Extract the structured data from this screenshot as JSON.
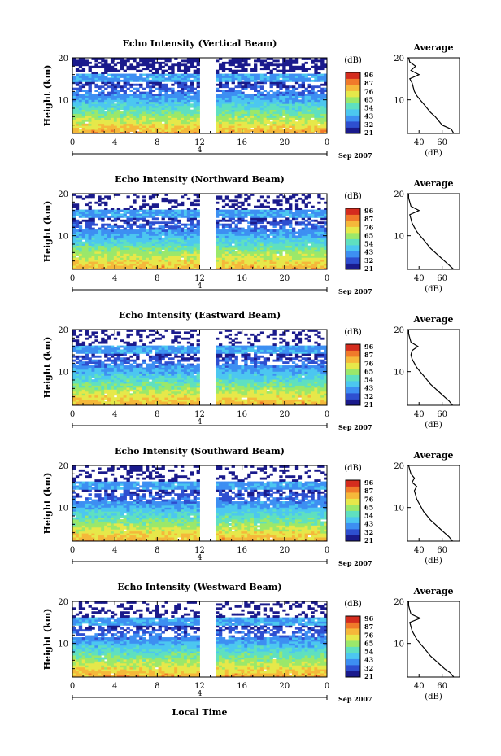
{
  "figure": {
    "xlabel": "Local Time",
    "date_label": "Sep 2007",
    "day_label": "4"
  },
  "colorbar": {
    "unit": "(dB)",
    "ticks": [
      "96",
      "87",
      "76",
      "65",
      "54",
      "43",
      "32",
      "21"
    ],
    "colors": [
      "#1a1a8c",
      "#2e4fd0",
      "#3d8ff2",
      "#4cc7f0",
      "#5fe0c0",
      "#9be86a",
      "#e6e84a",
      "#f5b83a",
      "#f07a2a",
      "#d42c1e"
    ]
  },
  "chart_data": [
    {
      "type": "heatmap",
      "title": "Echo Intensity (Vertical Beam)",
      "ylabel": "Height (km)",
      "x_ticks": [
        "0",
        "4",
        "8",
        "12",
        "16",
        "20",
        "0"
      ],
      "y_ticks": [
        "20",
        "10"
      ],
      "xlim": [
        0,
        24
      ],
      "ylim": [
        2,
        20
      ],
      "data_gap": [
        12,
        13.6
      ],
      "value_range": [
        21,
        96
      ]
    },
    {
      "type": "line",
      "title": "Average",
      "xlabel": "(dB)",
      "x_ticks": [
        "40",
        "60"
      ],
      "y_ticks": [
        "20",
        "10"
      ],
      "xlim": [
        30,
        75
      ],
      "ylim": [
        2,
        20
      ],
      "profile": [
        [
          70,
          2
        ],
        [
          68,
          3
        ],
        [
          60,
          4
        ],
        [
          57,
          5
        ],
        [
          54,
          6
        ],
        [
          50,
          7
        ],
        [
          47,
          8
        ],
        [
          44,
          9
        ],
        [
          41,
          10
        ],
        [
          38,
          11
        ],
        [
          36,
          12
        ],
        [
          35,
          13
        ],
        [
          34,
          14
        ],
        [
          32,
          15
        ],
        [
          40,
          16
        ],
        [
          33,
          17
        ],
        [
          37,
          18
        ],
        [
          32,
          19
        ],
        [
          31,
          20
        ]
      ]
    },
    {
      "type": "heatmap",
      "title": "Echo Intensity (Northward Beam)",
      "ylabel": "Height (km)",
      "x_ticks": [
        "0",
        "4",
        "8",
        "12",
        "16",
        "20",
        "0"
      ],
      "y_ticks": [
        "20",
        "10"
      ],
      "xlim": [
        0,
        24
      ],
      "ylim": [
        2,
        20
      ],
      "data_gap": [
        12,
        13.6
      ],
      "value_range": [
        21,
        96
      ]
    },
    {
      "type": "line",
      "title": "Average",
      "xlabel": "(dB)",
      "x_ticks": [
        "40",
        "60"
      ],
      "y_ticks": [
        "20",
        "10"
      ],
      "xlim": [
        30,
        75
      ],
      "ylim": [
        2,
        20
      ],
      "profile": [
        [
          70,
          2
        ],
        [
          66,
          3
        ],
        [
          62,
          4
        ],
        [
          58,
          5
        ],
        [
          54,
          6
        ],
        [
          50,
          7
        ],
        [
          47,
          8
        ],
        [
          44,
          9
        ],
        [
          41,
          10
        ],
        [
          38,
          11
        ],
        [
          36,
          12
        ],
        [
          34,
          13
        ],
        [
          33,
          14
        ],
        [
          32,
          15
        ],
        [
          40,
          16
        ],
        [
          33,
          17
        ],
        [
          32,
          18
        ],
        [
          31,
          19
        ],
        [
          31,
          20
        ]
      ]
    },
    {
      "type": "heatmap",
      "title": "Echo Intensity (Eastward Beam)",
      "ylabel": "Height (km)",
      "x_ticks": [
        "0",
        "4",
        "8",
        "12",
        "16",
        "20",
        "0"
      ],
      "y_ticks": [
        "20",
        "10"
      ],
      "xlim": [
        0,
        24
      ],
      "ylim": [
        2,
        20
      ],
      "data_gap": [
        12,
        13.6
      ],
      "value_range": [
        21,
        96
      ]
    },
    {
      "type": "line",
      "title": "Average",
      "xlabel": "(dB)",
      "x_ticks": [
        "40",
        "60"
      ],
      "y_ticks": [
        "20",
        "10"
      ],
      "xlim": [
        30,
        75
      ],
      "ylim": [
        2,
        20
      ],
      "profile": [
        [
          69,
          2
        ],
        [
          66,
          3
        ],
        [
          62,
          4
        ],
        [
          58,
          5
        ],
        [
          54,
          6
        ],
        [
          50,
          7
        ],
        [
          47,
          8
        ],
        [
          44,
          9
        ],
        [
          41,
          10
        ],
        [
          38,
          11
        ],
        [
          36,
          12
        ],
        [
          34,
          13
        ],
        [
          33,
          14
        ],
        [
          34,
          15
        ],
        [
          39,
          16
        ],
        [
          33,
          17
        ],
        [
          32,
          18
        ],
        [
          31,
          19
        ],
        [
          31,
          20
        ]
      ]
    },
    {
      "type": "heatmap",
      "title": "Echo Intensity (Southward Beam)",
      "ylabel": "Height (km)",
      "x_ticks": [
        "0",
        "4",
        "8",
        "12",
        "16",
        "20",
        "0"
      ],
      "y_ticks": [
        "20",
        "10"
      ],
      "xlim": [
        0,
        24
      ],
      "ylim": [
        2,
        20
      ],
      "data_gap": [
        12,
        13.6
      ],
      "value_range": [
        21,
        96
      ]
    },
    {
      "type": "line",
      "title": "Average",
      "xlabel": "(dB)",
      "x_ticks": [
        "40",
        "60"
      ],
      "y_ticks": [
        "20",
        "10"
      ],
      "xlim": [
        30,
        75
      ],
      "ylim": [
        2,
        20
      ],
      "profile": [
        [
          69,
          2
        ],
        [
          66,
          3
        ],
        [
          62,
          4
        ],
        [
          58,
          5
        ],
        [
          54,
          6
        ],
        [
          50,
          7
        ],
        [
          47,
          8
        ],
        [
          44,
          9
        ],
        [
          42,
          10
        ],
        [
          40,
          11
        ],
        [
          38,
          12
        ],
        [
          37,
          13
        ],
        [
          36,
          14
        ],
        [
          38,
          15
        ],
        [
          34,
          16
        ],
        [
          36,
          17
        ],
        [
          33,
          18
        ],
        [
          32,
          19
        ],
        [
          31,
          20
        ]
      ]
    },
    {
      "type": "heatmap",
      "title": "Echo Intensity (Westward Beam)",
      "ylabel": "Height (km)",
      "x_ticks": [
        "0",
        "4",
        "8",
        "12",
        "16",
        "20",
        "0"
      ],
      "y_ticks": [
        "20",
        "10"
      ],
      "xlim": [
        0,
        24
      ],
      "ylim": [
        2,
        20
      ],
      "data_gap": [
        12,
        13.6
      ],
      "value_range": [
        21,
        96
      ]
    },
    {
      "type": "line",
      "title": "Average",
      "xlabel": "(dB)",
      "x_ticks": [
        "40",
        "60"
      ],
      "y_ticks": [
        "20",
        "10"
      ],
      "xlim": [
        30,
        75
      ],
      "ylim": [
        2,
        20
      ],
      "profile": [
        [
          70,
          2
        ],
        [
          67,
          3
        ],
        [
          62,
          4
        ],
        [
          58,
          5
        ],
        [
          54,
          6
        ],
        [
          50,
          7
        ],
        [
          47,
          8
        ],
        [
          44,
          9
        ],
        [
          41,
          10
        ],
        [
          38,
          11
        ],
        [
          36,
          12
        ],
        [
          34,
          13
        ],
        [
          33,
          14
        ],
        [
          32,
          15
        ],
        [
          41,
          16
        ],
        [
          33,
          17
        ],
        [
          32,
          18
        ],
        [
          31,
          19
        ],
        [
          31,
          20
        ]
      ]
    }
  ]
}
